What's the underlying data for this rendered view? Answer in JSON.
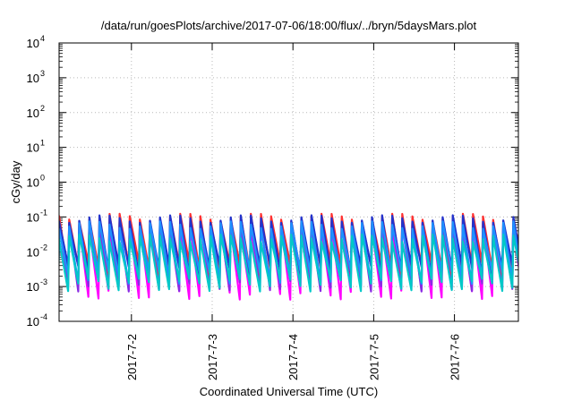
{
  "chart_data": {
    "type": "line",
    "title": "/data/run/goesPlots/archive/2017-07-06/18:00/flux/../bryn/5daysMars.plot",
    "xlabel": "Coordinated Universal Time (UTC)",
    "ylabel": "cGy/day",
    "yscale": "log",
    "ylim": [
      0.0001,
      10000
    ],
    "xlim": [
      "2017-07-01T02:30",
      "2017-07-06T19:00"
    ],
    "grid": true,
    "legend": "none",
    "y_ticks": [
      {
        "value": 0.0001,
        "base": "10",
        "exp": "-4"
      },
      {
        "value": 0.001,
        "base": "10",
        "exp": "-3"
      },
      {
        "value": 0.01,
        "base": "10",
        "exp": "-2"
      },
      {
        "value": 0.1,
        "base": "10",
        "exp": "-1"
      },
      {
        "value": 1,
        "base": "10",
        "exp": "0"
      },
      {
        "value": 10,
        "base": "10",
        "exp": "1"
      },
      {
        "value": 100,
        "base": "10",
        "exp": "2"
      },
      {
        "value": 1000,
        "base": "10",
        "exp": "3"
      },
      {
        "value": 10000,
        "base": "10",
        "exp": "4"
      }
    ],
    "x_ticks": [
      "2017-7-2",
      "2017-7-3",
      "2017-7-4",
      "2017-7-5",
      "2017-7-6"
    ],
    "cycle_hours": 3,
    "series": [
      {
        "color": "#ff00ff",
        "peak": 0.055,
        "trough": 0.0007
      },
      {
        "color": "#8a2be2",
        "peak": 0.06,
        "trough": 0.0012
      },
      {
        "color": "#ff3030",
        "peak": 0.1,
        "trough": 0.0035
      },
      {
        "color": "#2233cc",
        "peak": 0.09,
        "trough": 0.003
      },
      {
        "color": "#1e90ff",
        "peak": 0.06,
        "trough": 0.002
      },
      {
        "color": "#00c8c8",
        "peak": 0.025,
        "trough": 0.0012
      }
    ]
  }
}
